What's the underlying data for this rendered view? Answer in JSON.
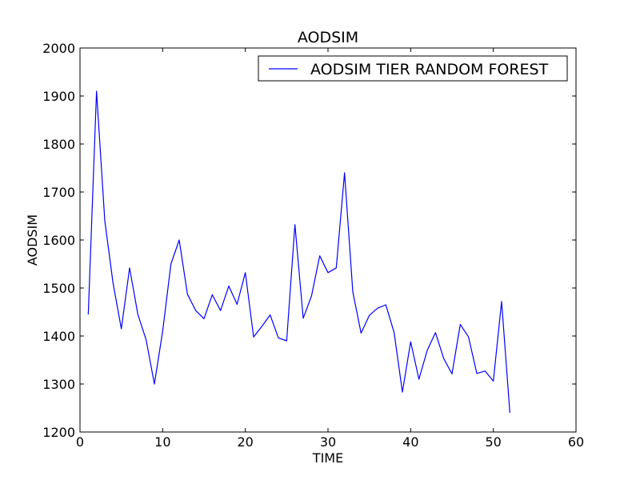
{
  "chart_data": {
    "type": "line",
    "title": "AODSIM",
    "xlabel": "TIME",
    "ylabel": "AODSIM",
    "xlim": [
      0,
      60
    ],
    "ylim": [
      1200,
      2000
    ],
    "xticks": [
      0,
      10,
      20,
      30,
      40,
      50,
      60
    ],
    "yticks": [
      1200,
      1300,
      1400,
      1500,
      1600,
      1700,
      1800,
      1900,
      2000
    ],
    "grid": false,
    "legend_position": "top-right",
    "series": [
      {
        "name": "AODSIM TIER RANDOM FOREST",
        "color": "#0000ff",
        "x": [
          1,
          2,
          3,
          4,
          5,
          6,
          7,
          8,
          9,
          10,
          11,
          12,
          13,
          14,
          15,
          16,
          17,
          18,
          19,
          20,
          21,
          22,
          23,
          24,
          25,
          26,
          27,
          28,
          29,
          30,
          31,
          32,
          33,
          34,
          35,
          36,
          37,
          38,
          39,
          40,
          41,
          42,
          43,
          44,
          45,
          46,
          47,
          48,
          49,
          50,
          51,
          52
        ],
        "values": [
          1445,
          1910,
          1640,
          1510,
          1415,
          1542,
          1445,
          1392,
          1300,
          1410,
          1550,
          1600,
          1487,
          1453,
          1436,
          1486,
          1453,
          1504,
          1466,
          1532,
          1398,
          1420,
          1444,
          1396,
          1390,
          1632,
          1437,
          1483,
          1567,
          1532,
          1542,
          1740,
          1492,
          1406,
          1443,
          1458,
          1465,
          1407,
          1283,
          1388,
          1310,
          1370,
          1407,
          1353,
          1321,
          1424,
          1398,
          1322,
          1327,
          1306,
          1472,
          1240
        ]
      }
    ]
  }
}
